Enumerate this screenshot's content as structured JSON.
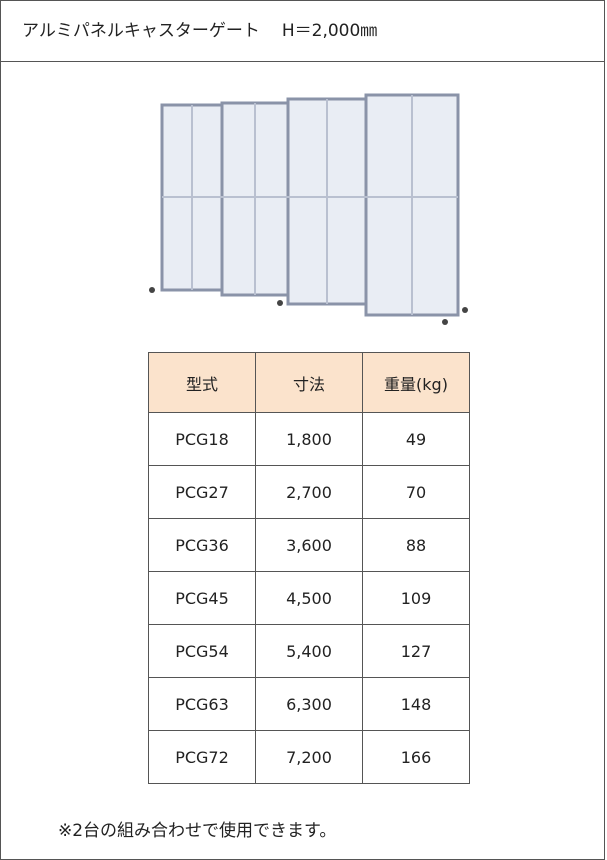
{
  "header": {
    "title": "アルミパネルキャスターゲート",
    "spec": "H＝2,000㎜"
  },
  "table": {
    "columns": [
      "型式",
      "寸法",
      "重量(kg)"
    ],
    "rows": [
      [
        "PCG18",
        "1,800",
        49
      ],
      [
        "PCG27",
        "2,700",
        70
      ],
      [
        "PCG36",
        "3,600",
        88
      ],
      [
        "PCG45",
        "4,500",
        109
      ],
      [
        "PCG54",
        "5,400",
        127
      ],
      [
        "PCG63",
        "6,300",
        148
      ],
      [
        "PCG72",
        "7,200",
        166
      ]
    ]
  },
  "note": "※2台の組み合わせで使用できます。"
}
